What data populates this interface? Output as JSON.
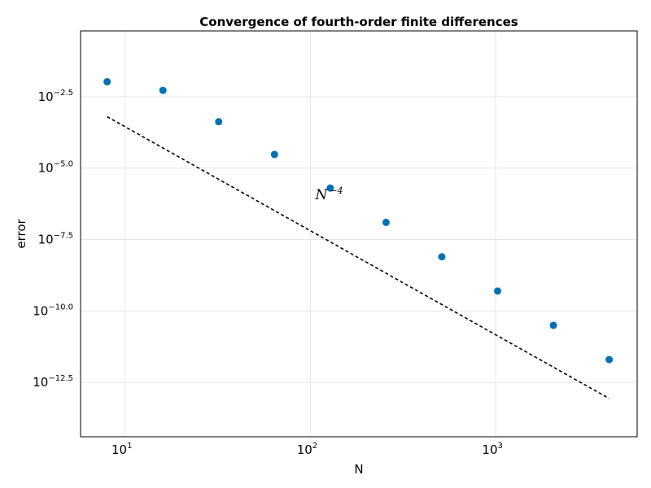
{
  "chart_data": {
    "type": "scatter",
    "title": "Convergence of fourth-order finite differences",
    "xlabel": "N",
    "ylabel": "error",
    "xscale": "log10",
    "yscale": "log10",
    "xlim": [
      5.75,
      5800
    ],
    "ylim_log10": [
      -14.4,
      -0.2
    ],
    "grid": true,
    "xticks": [
      {
        "value": 10,
        "base": "10",
        "exp": "1"
      },
      {
        "value": 100,
        "base": "10",
        "exp": "2"
      },
      {
        "value": 1000,
        "base": "10",
        "exp": "3"
      }
    ],
    "yticks": [
      {
        "log10": -2.5,
        "base": "10",
        "exp": "−2.5"
      },
      {
        "log10": -5.0,
        "base": "10",
        "exp": "−5.0"
      },
      {
        "log10": -7.5,
        "base": "10",
        "exp": "−7.5"
      },
      {
        "log10": -10.0,
        "base": "10",
        "exp": "−10.0"
      },
      {
        "log10": -12.5,
        "base": "10",
        "exp": "−12.5"
      }
    ],
    "series": [
      {
        "type": "scatter",
        "color": "#0072B2",
        "x": [
          8,
          16,
          32,
          64,
          128,
          256,
          512,
          1024,
          2048,
          4096
        ],
        "y": [
          0.0105,
          0.00525,
          0.00042,
          3e-05,
          2e-06,
          1.26e-07,
          7.9e-09,
          5e-10,
          3.16e-11,
          2e-12
        ]
      },
      {
        "type": "line",
        "style": "dashed",
        "color": "#000000",
        "x": [
          8,
          4096
        ],
        "y": [
          0.00063,
          8.7e-14
        ]
      }
    ],
    "annotation": {
      "base": "N",
      "exp": "−4",
      "x": 100,
      "y": 8e-07
    }
  }
}
